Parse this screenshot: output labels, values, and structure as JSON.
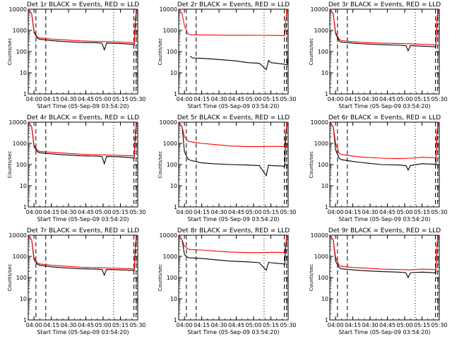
{
  "colors": {
    "events": "#000000",
    "lld": "#ff0000",
    "axes": "#000000",
    "background": "#ffffff"
  },
  "chart_data": [
    {
      "type": "line",
      "title": "Det 1r BLACK = Events, RED = LLD",
      "xlabel": "Start Time (05-Sep-09 03:54:20)",
      "ylabel": "Counts/sec",
      "y_scale": "log",
      "ylim": [
        1,
        10000
      ],
      "x_ticks": [
        "04:00",
        "04:15",
        "04:30",
        "04:45",
        "05:00",
        "05:15",
        "05:30"
      ],
      "y_ticks": [
        "1",
        "10",
        "100",
        "1000",
        "10000"
      ],
      "series": [
        {
          "name": "Events",
          "color": "#000000",
          "x_minutes": [
            0,
            3,
            5,
            8,
            10,
            20,
            30,
            45,
            60,
            64,
            66,
            68,
            80,
            90,
            92,
            93,
            94,
            95
          ],
          "y": [
            10000,
            6000,
            800,
            420,
            380,
            330,
            300,
            270,
            260,
            250,
            120,
            250,
            240,
            220,
            200,
            3000,
            10000,
            10000
          ]
        },
        {
          "name": "LLD",
          "color": "#ff0000",
          "x_minutes": [
            0,
            3,
            5,
            8,
            10,
            20,
            30,
            45,
            60,
            70,
            80,
            90,
            92,
            93,
            94,
            95
          ],
          "y": [
            10000,
            6000,
            900,
            480,
            440,
            390,
            360,
            320,
            300,
            290,
            280,
            260,
            250,
            3500,
            10000,
            10000
          ]
        }
      ]
    },
    {
      "type": "line",
      "title": "Det 2r BLACK = Events, RED = LLD",
      "xlabel": "Start Time (05-Sep-09 03:54:20)",
      "ylabel": "Counts/sec",
      "y_scale": "log",
      "ylim": [
        1,
        10000
      ],
      "x_ticks": [
        "04:00",
        "04:15",
        "04:30",
        "04:45",
        "05:00",
        "05:15",
        "05:30"
      ],
      "y_ticks": [
        "1",
        "10",
        "100",
        "1000",
        "10000"
      ],
      "series": [
        {
          "name": "Events",
          "color": "#000000",
          "x_minutes": [
            10,
            12,
            20,
            30,
            40,
            50,
            60,
            70,
            76,
            78,
            80,
            85,
            90,
            92,
            94,
            95
          ],
          "y": [
            60,
            50,
            48,
            44,
            40,
            36,
            30,
            28,
            14,
            38,
            30,
            28,
            26,
            25,
            24,
            60
          ]
        },
        {
          "name": "LLD",
          "color": "#ff0000",
          "x_minutes": [
            0,
            3,
            5,
            8,
            10,
            20,
            30,
            45,
            60,
            70,
            80,
            88,
            92,
            93,
            94,
            95
          ],
          "y": [
            10000,
            6000,
            1600,
            700,
            620,
            610,
            600,
            590,
            590,
            585,
            580,
            570,
            560,
            3000,
            10000,
            10000
          ]
        }
      ]
    },
    {
      "type": "line",
      "title": "Det 3r BLACK = Events, RED = LLD",
      "xlabel": "Start Time (05-Sep-09 03:54:20)",
      "ylabel": "Counts/sec",
      "y_scale": "log",
      "ylim": [
        1,
        10000
      ],
      "x_ticks": [
        "04:00",
        "04:15",
        "04:30",
        "04:45",
        "05:00",
        "05:15",
        "05:30"
      ],
      "y_ticks": [
        "1",
        "10",
        "100",
        "1000",
        "10000"
      ],
      "series": [
        {
          "name": "Events",
          "color": "#000000",
          "x_minutes": [
            0,
            3,
            5,
            8,
            10,
            20,
            30,
            45,
            60,
            66,
            68,
            70,
            80,
            90,
            92,
            93,
            94,
            95
          ],
          "y": [
            10000,
            6000,
            700,
            320,
            280,
            250,
            230,
            210,
            200,
            190,
            110,
            190,
            180,
            170,
            165,
            3000,
            10000,
            10000
          ]
        },
        {
          "name": "LLD",
          "color": "#ff0000",
          "x_minutes": [
            0,
            3,
            5,
            8,
            10,
            20,
            30,
            45,
            60,
            70,
            80,
            90,
            92,
            93,
            94,
            95
          ],
          "y": [
            10000,
            6000,
            800,
            380,
            330,
            290,
            270,
            250,
            240,
            230,
            220,
            210,
            200,
            3500,
            10000,
            10000
          ]
        }
      ]
    },
    {
      "type": "line",
      "title": "Det 4r BLACK = Events, RED = LLD",
      "xlabel": "Start Time (05-Sep-09 03:54:20)",
      "ylabel": "Counts/sec",
      "y_scale": "log",
      "ylim": [
        1,
        10000
      ],
      "x_ticks": [
        "04:00",
        "04:15",
        "04:30",
        "04:45",
        "05:00",
        "05:15",
        "05:30"
      ],
      "y_ticks": [
        "1",
        "10",
        "100",
        "1000",
        "10000"
      ],
      "series": [
        {
          "name": "Events",
          "color": "#000000",
          "x_minutes": [
            0,
            3,
            5,
            8,
            10,
            20,
            30,
            45,
            60,
            64,
            66,
            68,
            80,
            90,
            92,
            93,
            94,
            95
          ],
          "y": [
            10000,
            6000,
            700,
            400,
            360,
            320,
            290,
            260,
            250,
            240,
            110,
            240,
            230,
            210,
            200,
            3000,
            10000,
            10000
          ]
        },
        {
          "name": "LLD",
          "color": "#ff0000",
          "x_minutes": [
            0,
            3,
            5,
            8,
            10,
            20,
            30,
            45,
            60,
            70,
            80,
            90,
            92,
            93,
            94,
            95
          ],
          "y": [
            10000,
            6000,
            850,
            460,
            420,
            380,
            350,
            310,
            290,
            280,
            270,
            260,
            250,
            3500,
            10000,
            10000
          ]
        }
      ]
    },
    {
      "type": "line",
      "title": "Det 5r BLACK = Events, RED = LLD",
      "xlabel": "Start Time (05-Sep-09 03:54:20)",
      "ylabel": "Counts/sec",
      "y_scale": "log",
      "ylim": [
        1,
        10000
      ],
      "x_ticks": [
        "04:00",
        "04:15",
        "04:30",
        "04:45",
        "05:00",
        "05:15",
        "05:30"
      ],
      "y_ticks": [
        "1",
        "10",
        "100",
        "1000",
        "10000"
      ],
      "series": [
        {
          "name": "Events",
          "color": "#000000",
          "x_minutes": [
            0,
            3,
            5,
            8,
            10,
            20,
            30,
            45,
            60,
            70,
            76,
            78,
            80,
            90,
            92,
            93,
            94,
            95
          ],
          "y": [
            10000,
            6000,
            400,
            180,
            160,
            120,
            110,
            100,
            95,
            90,
            30,
            95,
            90,
            85,
            80,
            3000,
            10000,
            10000
          ]
        },
        {
          "name": "LLD",
          "color": "#ff0000",
          "x_minutes": [
            0,
            3,
            5,
            8,
            10,
            20,
            30,
            45,
            60,
            70,
            80,
            90,
            92,
            93,
            94,
            95
          ],
          "y": [
            10000,
            6000,
            2000,
            1300,
            1200,
            1000,
            900,
            750,
            700,
            700,
            720,
            720,
            700,
            3500,
            10000,
            10000
          ]
        }
      ]
    },
    {
      "type": "line",
      "title": "Det 6r BLACK = Events, RED = LLD",
      "xlabel": "Start Time (05-Sep-09 03:54:20)",
      "ylabel": "Counts/sec",
      "y_scale": "log",
      "ylim": [
        1,
        10000
      ],
      "x_ticks": [
        "04:00",
        "04:15",
        "04:30",
        "04:45",
        "05:00",
        "05:15",
        "05:30"
      ],
      "y_ticks": [
        "1",
        "10",
        "100",
        "1000",
        "10000"
      ],
      "series": [
        {
          "name": "Events",
          "color": "#000000",
          "x_minutes": [
            0,
            3,
            5,
            8,
            10,
            20,
            30,
            45,
            60,
            66,
            68,
            70,
            80,
            90,
            92,
            93,
            94,
            95
          ],
          "y": [
            10000,
            6000,
            500,
            200,
            170,
            140,
            120,
            100,
            95,
            90,
            55,
            90,
            110,
            105,
            100,
            3000,
            10000,
            10000
          ]
        },
        {
          "name": "LLD",
          "color": "#ff0000",
          "x_minutes": [
            0,
            3,
            5,
            8,
            10,
            20,
            30,
            45,
            60,
            70,
            80,
            90,
            92,
            93,
            94,
            95
          ],
          "y": [
            10000,
            6000,
            1000,
            350,
            300,
            250,
            220,
            200,
            190,
            200,
            220,
            210,
            200,
            3500,
            10000,
            10000
          ]
        }
      ]
    },
    {
      "type": "line",
      "title": "Det 7r BLACK = Events, RED = LLD",
      "xlabel": "Start Time (05-Sep-09 03:54:20)",
      "ylabel": "Counts/sec",
      "y_scale": "log",
      "ylim": [
        1,
        10000
      ],
      "x_ticks": [
        "04:00",
        "04:15",
        "04:30",
        "04:45",
        "05:00",
        "05:15",
        "05:30"
      ],
      "y_ticks": [
        "1",
        "10",
        "100",
        "1000",
        "10000"
      ],
      "series": [
        {
          "name": "Events",
          "color": "#000000",
          "x_minutes": [
            0,
            3,
            5,
            8,
            10,
            20,
            30,
            45,
            60,
            64,
            66,
            68,
            80,
            90,
            92,
            93,
            94,
            95
          ],
          "y": [
            10000,
            6000,
            700,
            420,
            380,
            320,
            290,
            260,
            250,
            240,
            130,
            240,
            230,
            220,
            210,
            3000,
            10000,
            10000
          ]
        },
        {
          "name": "LLD",
          "color": "#ff0000",
          "x_minutes": [
            0,
            3,
            5,
            8,
            10,
            20,
            30,
            45,
            60,
            70,
            80,
            90,
            92,
            93,
            94,
            95
          ],
          "y": [
            10000,
            6000,
            900,
            480,
            440,
            380,
            350,
            310,
            290,
            280,
            270,
            260,
            250,
            3500,
            10000,
            10000
          ]
        }
      ]
    },
    {
      "type": "line",
      "title": "Det 8r BLACK = Events, RED = LLD",
      "xlabel": "Start Time (05-Sep-09 03:54:20)",
      "ylabel": "Counts/sec",
      "y_scale": "log",
      "ylim": [
        1,
        10000
      ],
      "x_ticks": [
        "04:00",
        "04:15",
        "04:30",
        "04:45",
        "05:00",
        "05:15",
        "05:30"
      ],
      "y_ticks": [
        "1",
        "10",
        "100",
        "1000",
        "10000"
      ],
      "series": [
        {
          "name": "Events",
          "color": "#000000",
          "x_minutes": [
            0,
            3,
            5,
            8,
            10,
            20,
            30,
            45,
            60,
            70,
            76,
            78,
            80,
            90,
            92,
            93,
            94,
            95
          ],
          "y": [
            10000,
            6000,
            1200,
            900,
            850,
            800,
            700,
            600,
            550,
            500,
            220,
            520,
            500,
            450,
            420,
            3000,
            10000,
            10000
          ]
        },
        {
          "name": "LLD",
          "color": "#ff0000",
          "x_minutes": [
            0,
            3,
            5,
            8,
            10,
            20,
            30,
            45,
            60,
            70,
            80,
            90,
            92,
            93,
            94,
            95
          ],
          "y": [
            10000,
            6000,
            3000,
            2200,
            2100,
            2000,
            1800,
            1600,
            1500,
            1500,
            1550,
            1550,
            1500,
            4000,
            10000,
            10000
          ]
        }
      ]
    },
    {
      "type": "line",
      "title": "Det 9r BLACK = Events, RED = LLD",
      "xlabel": "Start Time (05-Sep-09 03:54:20)",
      "ylabel": "Counts/sec",
      "y_scale": "log",
      "ylim": [
        1,
        10000
      ],
      "x_ticks": [
        "04:00",
        "04:15",
        "04:30",
        "04:45",
        "05:00",
        "05:15",
        "05:30"
      ],
      "y_ticks": [
        "1",
        "10",
        "100",
        "1000",
        "10000"
      ],
      "series": [
        {
          "name": "Events",
          "color": "#000000",
          "x_minutes": [
            0,
            3,
            5,
            8,
            10,
            20,
            30,
            45,
            60,
            66,
            68,
            70,
            80,
            90,
            92,
            93,
            94,
            95
          ],
          "y": [
            10000,
            6000,
            600,
            300,
            260,
            230,
            210,
            190,
            180,
            170,
            100,
            170,
            180,
            170,
            160,
            3000,
            10000,
            10000
          ]
        },
        {
          "name": "LLD",
          "color": "#ff0000",
          "x_minutes": [
            0,
            3,
            5,
            8,
            10,
            20,
            30,
            45,
            60,
            70,
            80,
            90,
            92,
            93,
            94,
            95
          ],
          "y": [
            10000,
            6000,
            900,
            380,
            340,
            300,
            280,
            250,
            240,
            230,
            250,
            240,
            230,
            3500,
            10000,
            10000
          ]
        }
      ]
    }
  ]
}
